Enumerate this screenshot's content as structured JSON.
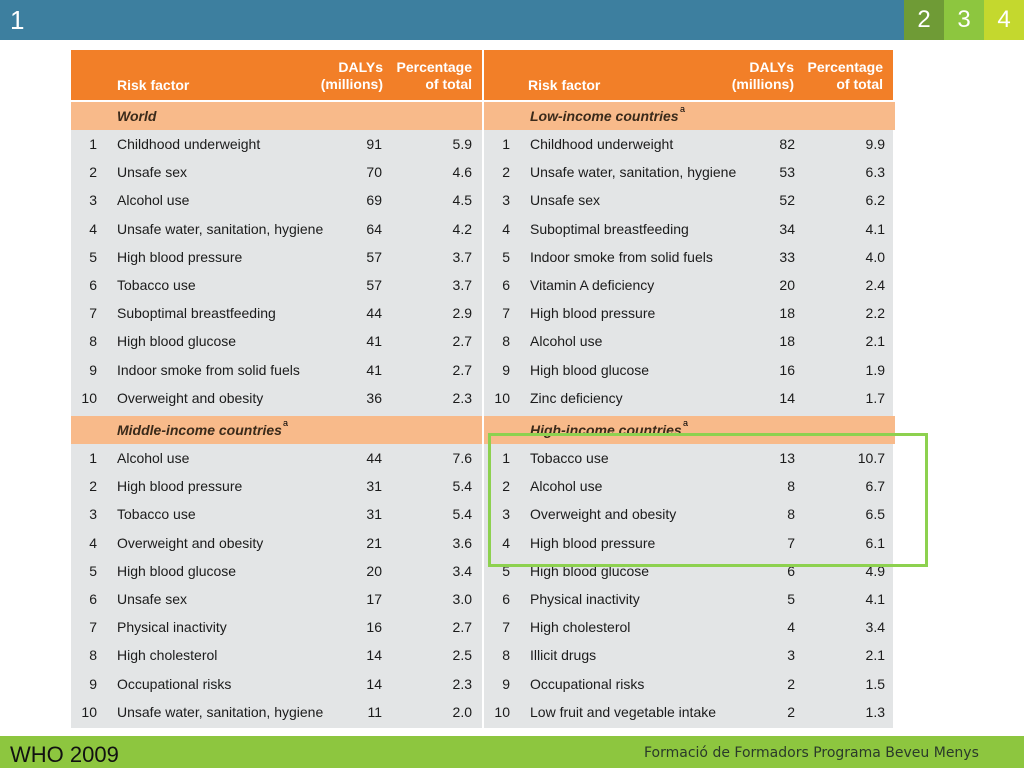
{
  "slide": {
    "number": "1",
    "tabs": [
      "2",
      "3",
      "4"
    ]
  },
  "headers": {
    "risk_factor": "Risk factor",
    "dalys_1": "DALYs",
    "dalys_2": "(millions)",
    "pct_1": "Percentage",
    "pct_2": "of total"
  },
  "sections": [
    {
      "title": "World",
      "sup": "",
      "rows": [
        {
          "rank": "1",
          "name": "Childhood underweight",
          "dalys": "91",
          "pct": "5.9"
        },
        {
          "rank": "2",
          "name": "Unsafe sex",
          "dalys": "70",
          "pct": "4.6"
        },
        {
          "rank": "3",
          "name": "Alcohol use",
          "dalys": "69",
          "pct": "4.5"
        },
        {
          "rank": "4",
          "name": "Unsafe water, sanitation, hygiene",
          "dalys": "64",
          "pct": "4.2"
        },
        {
          "rank": "5",
          "name": "High blood pressure",
          "dalys": "57",
          "pct": "3.7"
        },
        {
          "rank": "6",
          "name": "Tobacco use",
          "dalys": "57",
          "pct": "3.7"
        },
        {
          "rank": "7",
          "name": "Suboptimal breastfeeding",
          "dalys": "44",
          "pct": "2.9"
        },
        {
          "rank": "8",
          "name": "High blood glucose",
          "dalys": "41",
          "pct": "2.7"
        },
        {
          "rank": "9",
          "name": "Indoor smoke from solid fuels",
          "dalys": "41",
          "pct": "2.7"
        },
        {
          "rank": "10",
          "name": "Overweight and obesity",
          "dalys": "36",
          "pct": "2.3"
        }
      ]
    },
    {
      "title": "Low-income countries",
      "sup": "a",
      "rows": [
        {
          "rank": "1",
          "name": "Childhood underweight",
          "dalys": "82",
          "pct": "9.9"
        },
        {
          "rank": "2",
          "name": "Unsafe water, sanitation, hygiene",
          "dalys": "53",
          "pct": "6.3"
        },
        {
          "rank": "3",
          "name": "Unsafe sex",
          "dalys": "52",
          "pct": "6.2"
        },
        {
          "rank": "4",
          "name": "Suboptimal breastfeeding",
          "dalys": "34",
          "pct": "4.1"
        },
        {
          "rank": "5",
          "name": "Indoor smoke from solid fuels",
          "dalys": "33",
          "pct": "4.0"
        },
        {
          "rank": "6",
          "name": "Vitamin A deficiency",
          "dalys": "20",
          "pct": "2.4"
        },
        {
          "rank": "7",
          "name": "High blood pressure",
          "dalys": "18",
          "pct": "2.2"
        },
        {
          "rank": "8",
          "name": "Alcohol use",
          "dalys": "18",
          "pct": "2.1"
        },
        {
          "rank": "9",
          "name": "High blood glucose",
          "dalys": "16",
          "pct": "1.9"
        },
        {
          "rank": "10",
          "name": "Zinc deficiency",
          "dalys": "14",
          "pct": "1.7"
        }
      ]
    },
    {
      "title": "Middle-income countries",
      "sup": "a",
      "rows": [
        {
          "rank": "1",
          "name": "Alcohol use",
          "dalys": "44",
          "pct": "7.6"
        },
        {
          "rank": "2",
          "name": "High blood pressure",
          "dalys": "31",
          "pct": "5.4"
        },
        {
          "rank": "3",
          "name": "Tobacco use",
          "dalys": "31",
          "pct": "5.4"
        },
        {
          "rank": "4",
          "name": "Overweight and obesity",
          "dalys": "21",
          "pct": "3.6"
        },
        {
          "rank": "5",
          "name": "High blood glucose",
          "dalys": "20",
          "pct": "3.4"
        },
        {
          "rank": "6",
          "name": "Unsafe sex",
          "dalys": "17",
          "pct": "3.0"
        },
        {
          "rank": "7",
          "name": "Physical inactivity",
          "dalys": "16",
          "pct": "2.7"
        },
        {
          "rank": "8",
          "name": "High cholesterol",
          "dalys": "14",
          "pct": "2.5"
        },
        {
          "rank": "9",
          "name": "Occupational risks",
          "dalys": "14",
          "pct": "2.3"
        },
        {
          "rank": "10",
          "name": "Unsafe water, sanitation, hygiene",
          "dalys": "11",
          "pct": "2.0"
        }
      ]
    },
    {
      "title": "High-income countries",
      "sup": "a",
      "rows": [
        {
          "rank": "1",
          "name": "Tobacco use",
          "dalys": "13",
          "pct": "10.7"
        },
        {
          "rank": "2",
          "name": "Alcohol use",
          "dalys": "8",
          "pct": "6.7"
        },
        {
          "rank": "3",
          "name": "Overweight and obesity",
          "dalys": "8",
          "pct": "6.5"
        },
        {
          "rank": "4",
          "name": "High blood pressure",
          "dalys": "7",
          "pct": "6.1"
        },
        {
          "rank": "5",
          "name": "High blood glucose",
          "dalys": "6",
          "pct": "4.9"
        },
        {
          "rank": "6",
          "name": "Physical inactivity",
          "dalys": "5",
          "pct": "4.1"
        },
        {
          "rank": "7",
          "name": "High cholesterol",
          "dalys": "4",
          "pct": "3.4"
        },
        {
          "rank": "8",
          "name": "Illicit drugs",
          "dalys": "3",
          "pct": "2.1"
        },
        {
          "rank": "9",
          "name": "Occupational risks",
          "dalys": "2",
          "pct": "1.5"
        },
        {
          "rank": "10",
          "name": "Low fruit and vegetable intake",
          "dalys": "2",
          "pct": "1.3"
        }
      ]
    }
  ],
  "footer": {
    "left": "WHO 2009",
    "right": "Formació de Formadors Programa Beveu Menys"
  },
  "colors": {
    "header": "#f27f28",
    "section": "#f8ba8a",
    "body": "#e3e5e6",
    "topbar": "#3d7f9f",
    "footer": "#8dc63f",
    "highlight": "#8dd14f"
  }
}
